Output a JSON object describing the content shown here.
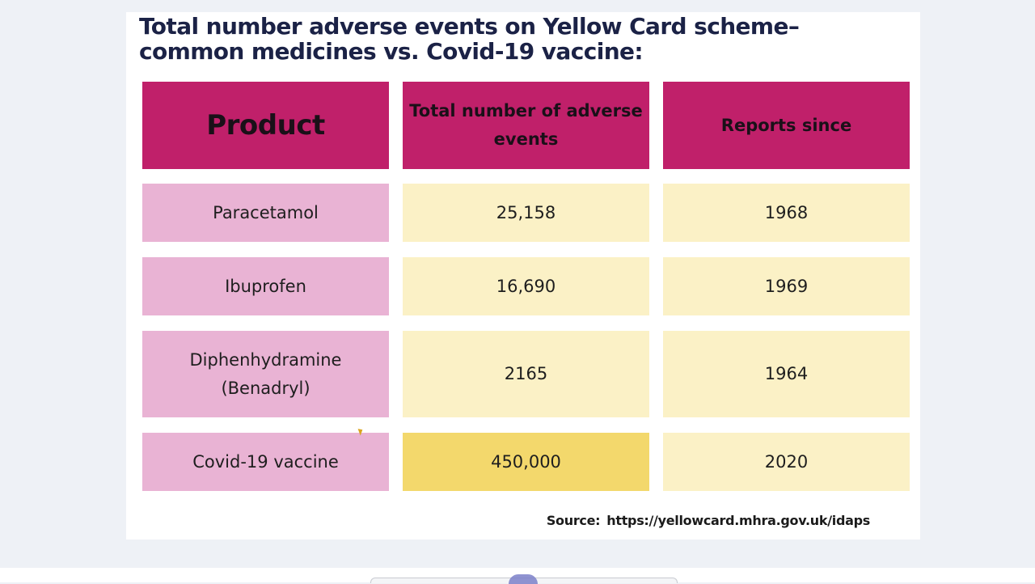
{
  "slide": {
    "title_line1": "Total number adverse events on Yellow Card scheme–",
    "title_line2": "common medicines vs. Covid-19 vaccine:",
    "source_label": "Source:",
    "source_url": "https://yellowcard.mhra.gov.uk/idaps"
  },
  "table": {
    "headers": [
      "Product",
      "Total number of adverse events",
      "Reports since"
    ],
    "rows": [
      [
        "Paracetamol",
        "25,158",
        "1968"
      ],
      [
        "Ibuprofen",
        "16,690",
        "1969"
      ],
      [
        "Diphenhydramine (Benadryl)",
        "2165",
        "1964"
      ],
      [
        "Covid-19 vaccine",
        "450,000",
        "2020"
      ]
    ]
  },
  "colors": {
    "header_bg": "#c0206a",
    "product_bg": "#e9b3d4",
    "value_bg": "#fbf1c6",
    "highlight_bg": "#f3d86c",
    "title_color": "#1b2246"
  }
}
